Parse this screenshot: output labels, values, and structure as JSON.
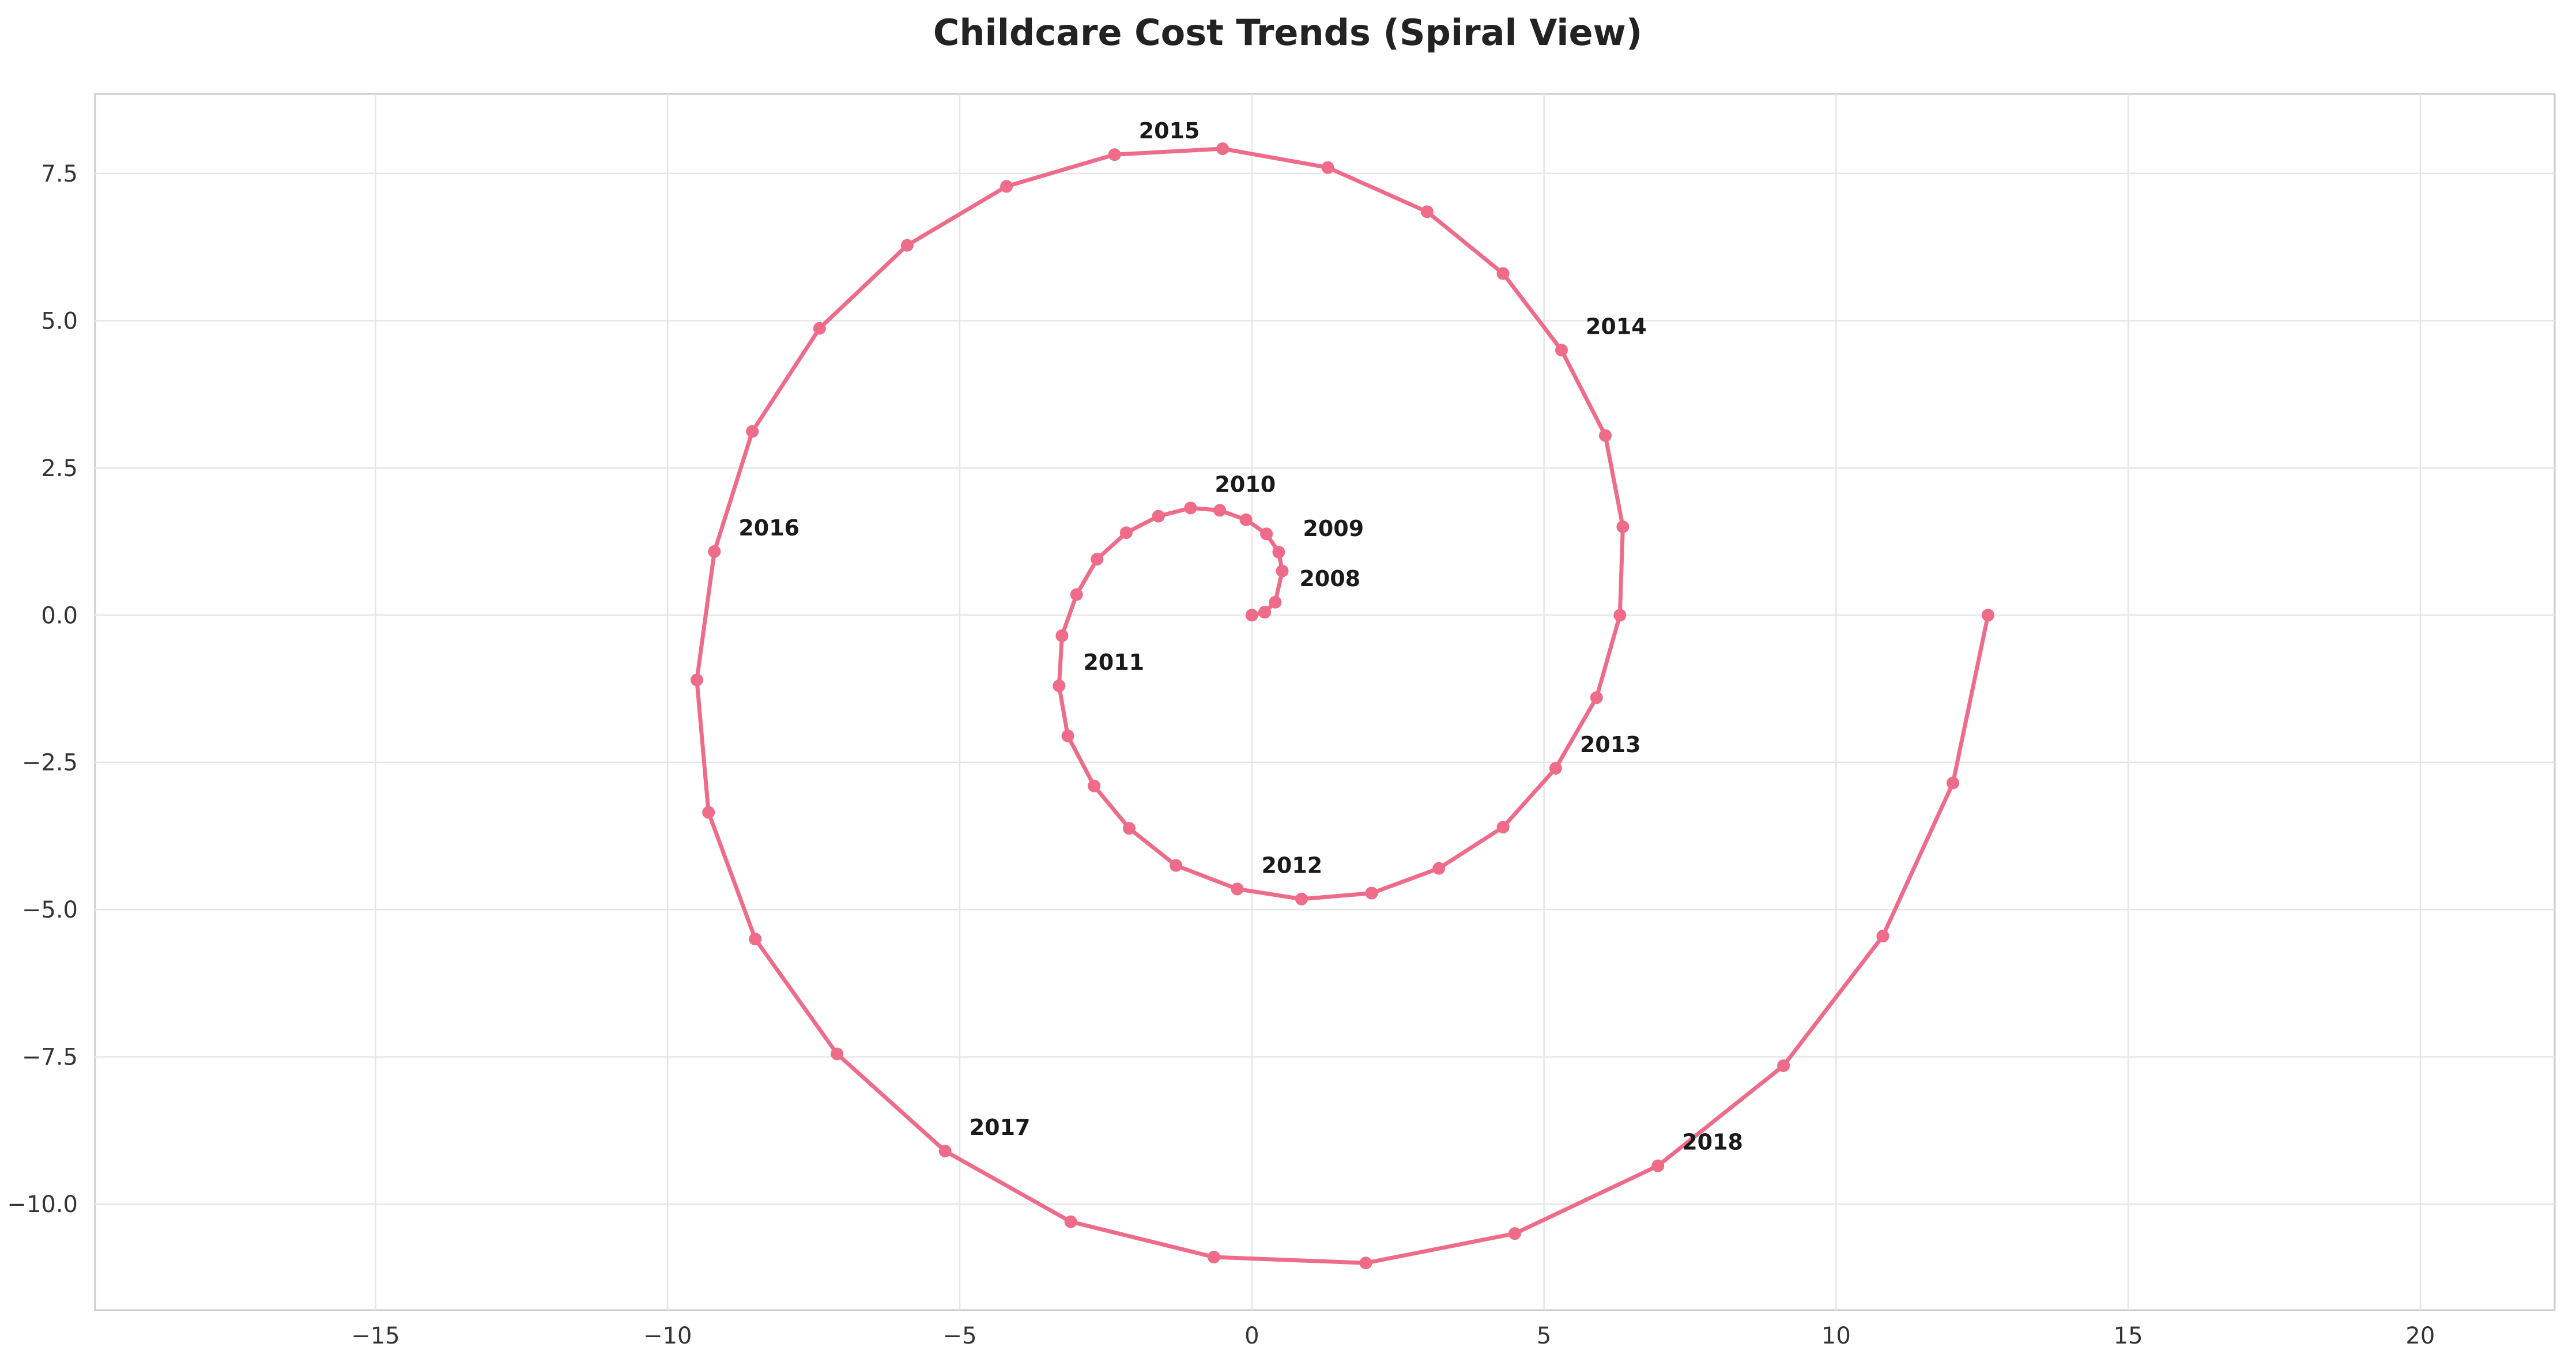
{
  "chart_data": {
    "type": "line",
    "title": "Childcare Cost Trends (Spiral View)",
    "xlabel": "",
    "ylabel": "",
    "xlim": [
      -19.8,
      22.3
    ],
    "ylim": [
      -11.8,
      8.85
    ],
    "xticks": [
      -15,
      -10,
      -5,
      0,
      5,
      10,
      15,
      20
    ],
    "xtick_labels": [
      "−15",
      "−10",
      "−5",
      "0",
      "5",
      "10",
      "15",
      "20"
    ],
    "yticks": [
      -10.0,
      -7.5,
      -5.0,
      -2.5,
      0.0,
      2.5,
      5.0,
      7.5
    ],
    "ytick_labels": [
      "−10.0",
      "−7.5",
      "−5.0",
      "−2.5",
      "0.0",
      "2.5",
      "5.0",
      "7.5"
    ],
    "grid": true,
    "legend": "none",
    "series": [
      {
        "color": "#ee6b8a",
        "x": [
          0.0,
          0.22,
          0.4,
          0.52,
          0.46,
          0.25,
          -0.1,
          -0.55,
          -1.05,
          -1.6,
          -2.15,
          -2.65,
          -3.0,
          -3.25,
          -3.3,
          -3.15,
          -2.7,
          -2.1,
          -1.3,
          -0.25,
          0.85,
          2.05,
          3.2,
          4.3,
          5.2,
          5.9,
          6.3,
          6.35,
          6.05,
          5.3,
          4.3,
          3.0,
          1.3,
          -0.5,
          -2.35,
          -4.2,
          -5.9,
          -7.4,
          -8.55,
          -9.2,
          -9.5,
          -9.3,
          -8.5,
          -7.1,
          -5.25,
          -3.1,
          -0.65,
          1.95,
          4.5,
          6.95,
          9.1,
          10.8,
          12.0,
          12.6
        ],
        "y": [
          0.0,
          0.05,
          0.22,
          0.75,
          1.07,
          1.38,
          1.62,
          1.78,
          1.82,
          1.68,
          1.4,
          0.95,
          0.35,
          -0.35,
          -1.2,
          -2.05,
          -2.9,
          -3.62,
          -4.25,
          -4.65,
          -4.82,
          -4.72,
          -4.3,
          -3.6,
          -2.6,
          -1.4,
          0.0,
          1.5,
          3.05,
          4.5,
          5.8,
          6.85,
          7.6,
          7.92,
          7.82,
          7.28,
          6.28,
          4.87,
          3.12,
          1.08,
          -1.1,
          -3.35,
          -5.5,
          -7.45,
          -9.1,
          -10.3,
          -10.9,
          -11.0,
          -10.5,
          -9.35,
          -7.65,
          -5.45,
          -2.85,
          0.0
        ]
      }
    ],
    "annotations": [
      {
        "text": "2008",
        "x": 0.4,
        "y": 0.22
      },
      {
        "text": "2009",
        "x": 0.46,
        "y": 1.07
      },
      {
        "text": "2010",
        "x": -1.05,
        "y": 1.82
      },
      {
        "text": "2011",
        "x": -3.3,
        "y": -1.2
      },
      {
        "text": "2012",
        "x": -0.25,
        "y": -4.65
      },
      {
        "text": "2013",
        "x": 5.2,
        "y": -2.6
      },
      {
        "text": "2014",
        "x": 5.3,
        "y": 4.5
      },
      {
        "text": "2015",
        "x": -2.35,
        "y": 7.82
      },
      {
        "text": "2016",
        "x": -9.2,
        "y": 1.08
      },
      {
        "text": "2017",
        "x": -5.25,
        "y": -9.1
      },
      {
        "text": "2018",
        "x": 6.95,
        "y": -9.35
      }
    ]
  }
}
